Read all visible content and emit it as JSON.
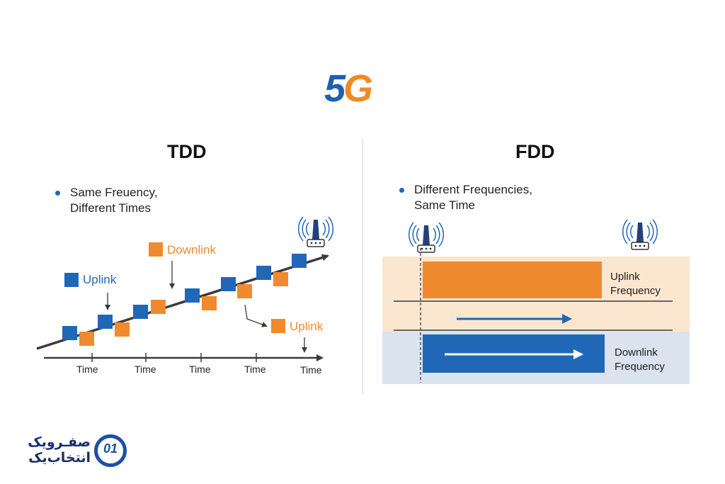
{
  "logo": {
    "five": "5",
    "g": "G"
  },
  "tdd": {
    "title": "TDD",
    "bullet_line1": "Same Freuency,",
    "bullet_line2": "Different Times",
    "legend_uplink": "Uplink",
    "legend_downlink": "Downlink",
    "legend_uplink2": "Uplink",
    "time_labels": [
      "Time",
      "Time",
      "Time",
      "Time",
      "Time"
    ]
  },
  "fdd": {
    "title": "FDD",
    "bullet_line1": "Different Frequencies,",
    "bullet_line2": "Same Time",
    "uplink_label_1": "Uplink",
    "uplink_label_2": "Frequency",
    "downlink_label_1": "Downlink",
    "downlink_label_2": "Frequency"
  },
  "colors": {
    "uplink": "#2167b8",
    "downlink": "#ef8a2e",
    "band_top": "#fbe7cf",
    "band_bottom": "#dbe3ef"
  },
  "brand": {
    "line1": "صفـرویک",
    "line2": "انتخاب‌یک",
    "mark": "01"
  }
}
